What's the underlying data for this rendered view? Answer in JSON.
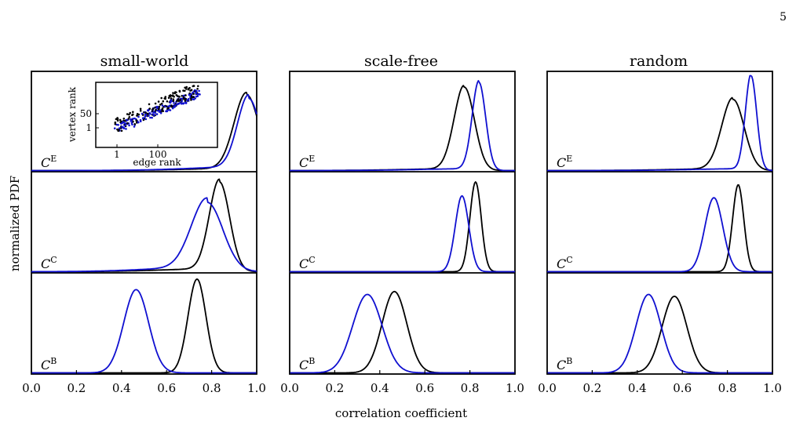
{
  "page_number": "5",
  "colors": {
    "series_black": "#000000",
    "series_blue": "#1010d0"
  },
  "chart_data": {
    "type": "line",
    "description_grid": "3 rows x 3 columns of stacked density panels sharing an x axis",
    "xlabel": "correlation coefficient",
    "ylabel": "normalized PDF",
    "xlim": [
      0.0,
      1.0
    ],
    "x_ticks": [
      "0.0",
      "0.2",
      "0.4",
      "0.6",
      "0.8",
      "1.0"
    ],
    "grid": false,
    "columns": [
      "small-world",
      "scale-free",
      "random"
    ],
    "rows": [
      {
        "letter": "C",
        "sup": "E"
      },
      {
        "letter": "C",
        "sup": "C"
      },
      {
        "letter": "C",
        "sup": "B"
      }
    ],
    "panels": [
      [
        {
          "black": {
            "mean": 0.955,
            "sd": 0.055,
            "height": 0.8,
            "tail": 0.06
          },
          "blue": {
            "mean": 0.965,
            "sd": 0.05,
            "height": 0.76,
            "tail": 0.1
          }
        },
        {
          "black": {
            "mean": 0.835,
            "sd": 0.045,
            "height": 0.97,
            "tail": 0.08
          },
          "blue": {
            "mean": 0.78,
            "sd": 0.07,
            "height": 0.75,
            "tail": 0.12
          }
        },
        {
          "black": {
            "mean": 0.735,
            "sd": 0.04,
            "height": 0.98,
            "tail": 0.0
          },
          "blue": {
            "mean": 0.465,
            "sd": 0.055,
            "height": 0.87,
            "tail": 0.0
          }
        }
      ],
      [
        {
          "black": {
            "mean": 0.775,
            "sd": 0.045,
            "height": 0.88,
            "tail": 0.05
          },
          "blue": {
            "mean": 0.84,
            "sd": 0.03,
            "height": 0.93,
            "tail": 0.05
          }
        },
        {
          "black": {
            "mean": 0.825,
            "sd": 0.025,
            "height": 0.97,
            "tail": 0.0
          },
          "blue": {
            "mean": 0.765,
            "sd": 0.03,
            "height": 0.82,
            "tail": 0.0
          }
        },
        {
          "black": {
            "mean": 0.465,
            "sd": 0.055,
            "height": 0.85,
            "tail": 0.0
          },
          "blue": {
            "mean": 0.345,
            "sd": 0.065,
            "height": 0.82,
            "tail": 0.0
          }
        }
      ],
      [
        {
          "black": {
            "mean": 0.825,
            "sd": 0.05,
            "height": 0.75,
            "tail": 0.05
          },
          "blue": {
            "mean": 0.905,
            "sd": 0.025,
            "height": 1.0,
            "tail": 0.05
          }
        },
        {
          "black": {
            "mean": 0.848,
            "sd": 0.025,
            "height": 0.94,
            "tail": 0.0
          },
          "blue": {
            "mean": 0.74,
            "sd": 0.04,
            "height": 0.8,
            "tail": 0.0
          }
        },
        {
          "black": {
            "mean": 0.565,
            "sd": 0.055,
            "height": 0.8,
            "tail": 0.0
          },
          "blue": {
            "mean": 0.45,
            "sd": 0.055,
            "height": 0.82,
            "tail": 0.0
          }
        }
      ]
    ],
    "inset": {
      "type": "scatter",
      "xlabel": "edge rank",
      "ylabel": "vertex rank",
      "x_ticks": [
        "1",
        "100"
      ],
      "y_ticks": [
        "1",
        "50"
      ],
      "series": [
        "black",
        "blue"
      ]
    }
  }
}
